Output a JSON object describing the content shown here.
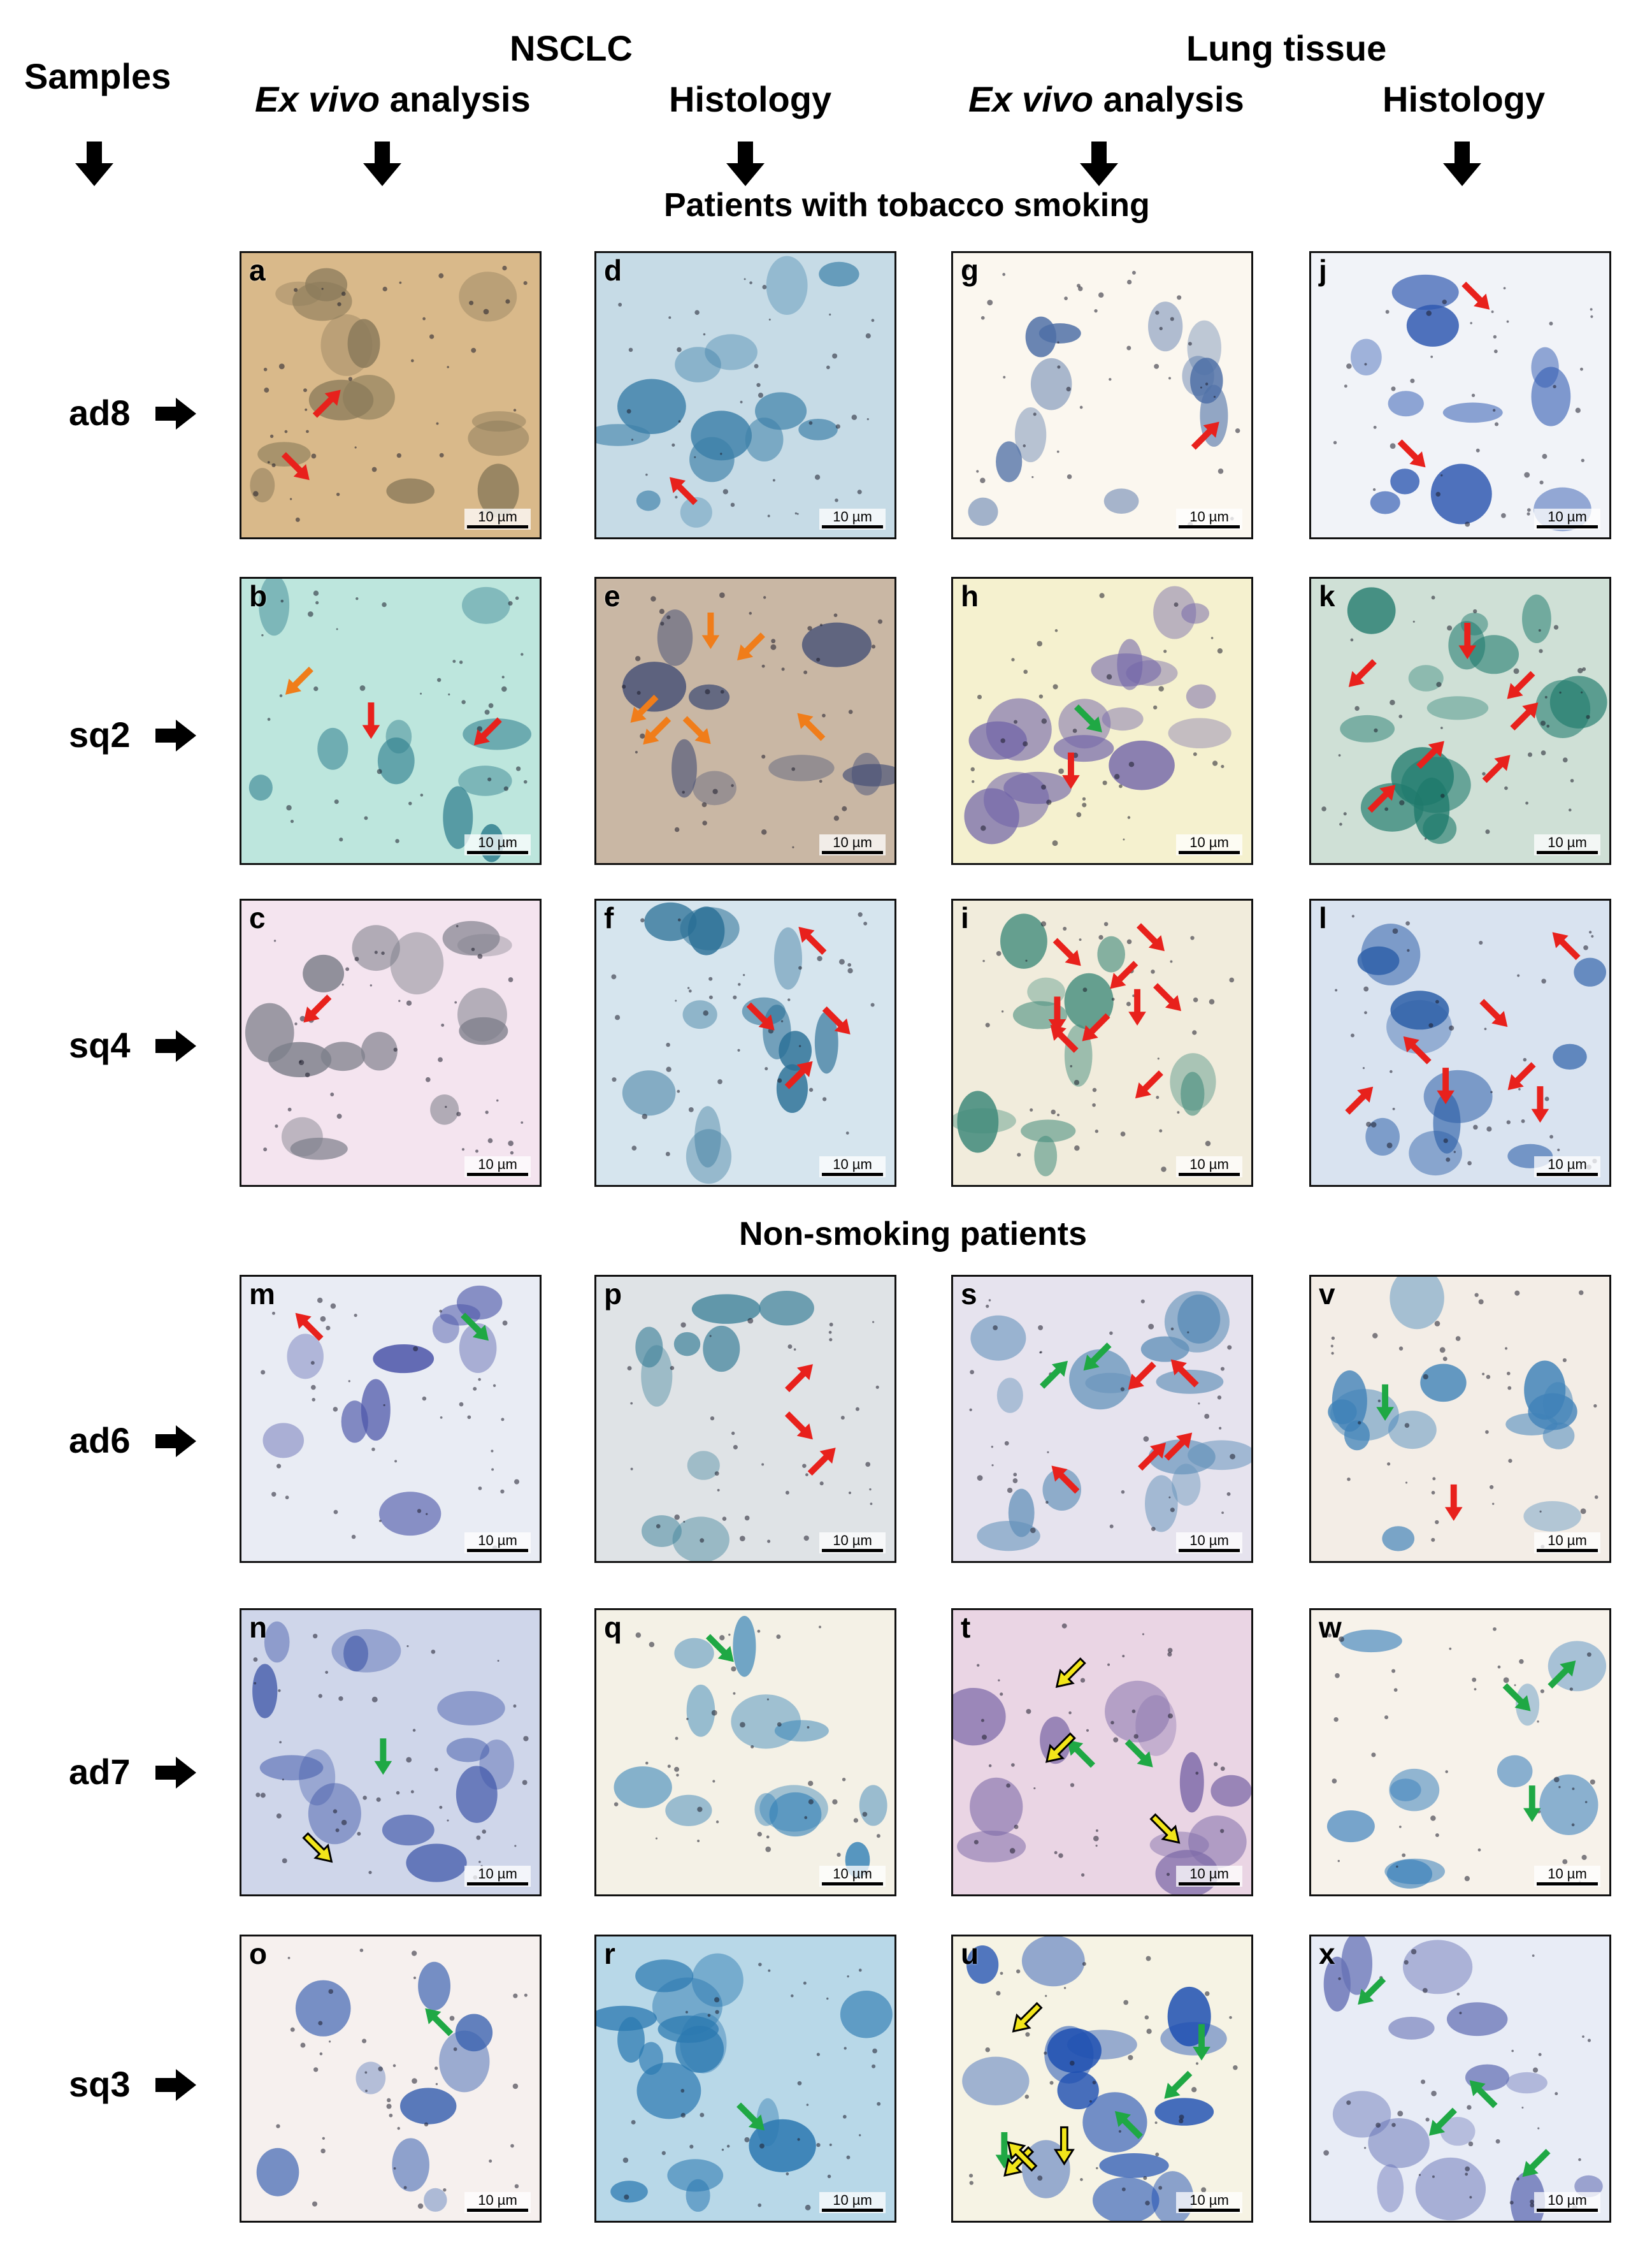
{
  "headers": {
    "samples": "Samples",
    "nsclc": "NSCLC",
    "lung_tissue": "Lung tissue",
    "col1_em": "Ex vivo",
    "col1_rest": " analysis",
    "col2": "Histology",
    "col3_em": "Ex vivo",
    "col3_rest": " analysis",
    "col4": "Histology"
  },
  "sections": {
    "smoking": "Patients with tobacco smoking",
    "nonsmoking": "Non-smoking patients"
  },
  "rows": [
    "ad8",
    "sq2",
    "sq4",
    "ad6",
    "ad7",
    "sq3"
  ],
  "scale_label": "10 µm",
  "colors": {
    "red_arrow": "#e8211c",
    "orange_arrow": "#f07d1a",
    "green_arrow": "#1fa844",
    "yellow_arrow": "#f2e51a"
  },
  "panels": [
    {
      "letter": "a",
      "bg": "#d9b98a",
      "cell": "#8a7a5a",
      "red": 2,
      "orange": 0,
      "green": 0,
      "yellow": 0
    },
    {
      "letter": "d",
      "bg": "#c6dbe6",
      "cell": "#3c7fa8",
      "red": 1,
      "orange": 0,
      "green": 0,
      "yellow": 0
    },
    {
      "letter": "g",
      "bg": "#fbf7ef",
      "cell": "#4d6fa6",
      "red": 1,
      "orange": 0,
      "green": 0,
      "yellow": 0
    },
    {
      "letter": "j",
      "bg": "#f1f3f8",
      "cell": "#2e58b0",
      "red": 2,
      "orange": 0,
      "green": 0,
      "yellow": 0
    },
    {
      "letter": "b",
      "bg": "#bde6dd",
      "cell": "#2f7e8e",
      "red": 2,
      "orange": 1,
      "green": 0,
      "yellow": 0
    },
    {
      "letter": "e",
      "bg": "#c9b7a4",
      "cell": "#3f4b74",
      "red": 0,
      "orange": 6,
      "green": 0,
      "yellow": 0
    },
    {
      "letter": "h",
      "bg": "#f5f1cf",
      "cell": "#6f62a8",
      "red": 1,
      "orange": 0,
      "green": 1,
      "yellow": 0
    },
    {
      "letter": "k",
      "bg": "#cfe0d6",
      "cell": "#1f7a6c",
      "red": 7,
      "orange": 0,
      "green": 0,
      "yellow": 0
    },
    {
      "letter": "c",
      "bg": "#f4e4ef",
      "cell": "#7d7f8a",
      "red": 1,
      "orange": 0,
      "green": 0,
      "yellow": 0
    },
    {
      "letter": "f",
      "bg": "#d6e5ee",
      "cell": "#2a6f96",
      "red": 4,
      "orange": 0,
      "green": 0,
      "yellow": 0
    },
    {
      "letter": "i",
      "bg": "#f1ecdc",
      "cell": "#3f8a7a",
      "red": 9,
      "orange": 0,
      "green": 0,
      "yellow": 0
    },
    {
      "letter": "l",
      "bg": "#d9e3f0",
      "cell": "#2c5fa8",
      "red": 7,
      "orange": 0,
      "green": 0,
      "yellow": 0
    },
    {
      "letter": "m",
      "bg": "#e9ecf4",
      "cell": "#4b55a8",
      "red": 1,
      "orange": 0,
      "green": 1,
      "yellow": 0
    },
    {
      "letter": "p",
      "bg": "#dfe3e6",
      "cell": "#3a7f98",
      "red": 3,
      "orange": 0,
      "green": 0,
      "yellow": 0
    },
    {
      "letter": "s",
      "bg": "#e6e3ee",
      "cell": "#5f8fb8",
      "red": 5,
      "orange": 0,
      "green": 2,
      "yellow": 0
    },
    {
      "letter": "v",
      "bg": "#f3ede6",
      "cell": "#3f82b8",
      "red": 1,
      "orange": 0,
      "green": 1,
      "yellow": 0
    },
    {
      "letter": "n",
      "bg": "#cfd6ea",
      "cell": "#3e56a8",
      "red": 0,
      "orange": 0,
      "green": 1,
      "yellow": 1
    },
    {
      "letter": "q",
      "bg": "#f4f1e6",
      "cell": "#2f7fb5",
      "red": 0,
      "orange": 0,
      "green": 1,
      "yellow": 0
    },
    {
      "letter": "t",
      "bg": "#ead5e4",
      "cell": "#7d6aa8",
      "red": 0,
      "orange": 0,
      "green": 2,
      "yellow": 3
    },
    {
      "letter": "w",
      "bg": "#f7f2ea",
      "cell": "#2f79b8",
      "red": 0,
      "orange": 0,
      "green": 3,
      "yellow": 0
    },
    {
      "letter": "o",
      "bg": "#f6f0ee",
      "cell": "#3860b0",
      "red": 0,
      "orange": 0,
      "green": 1,
      "yellow": 0
    },
    {
      "letter": "r",
      "bg": "#b8d8e8",
      "cell": "#2a78b0",
      "red": 0,
      "orange": 0,
      "green": 1,
      "yellow": 0
    },
    {
      "letter": "u",
      "bg": "#f6f3e4",
      "cell": "#1d4fb2",
      "red": 0,
      "orange": 0,
      "green": 4,
      "yellow": 4
    },
    {
      "letter": "x",
      "bg": "#e8ecf6",
      "cell": "#6571b5",
      "red": 0,
      "orange": 0,
      "green": 4,
      "yellow": 0
    }
  ]
}
